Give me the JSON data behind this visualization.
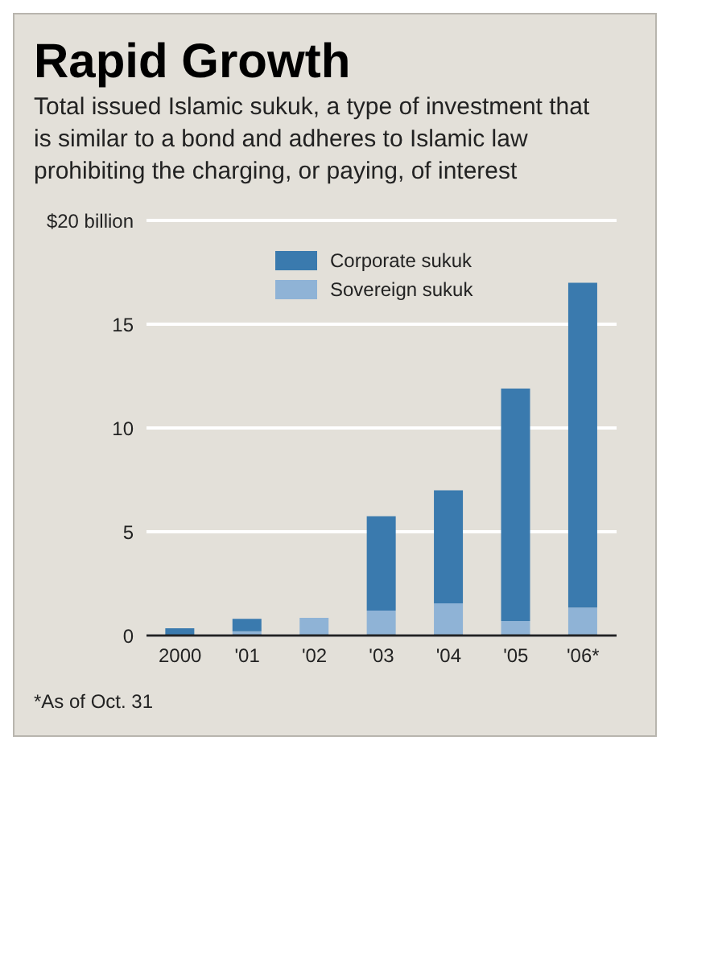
{
  "chart_data": {
    "type": "bar",
    "title": "Rapid Growth",
    "subtitle": "Total issued Islamic sukuk, a type of investment that is similar to a bond and adheres to Islamic law prohibiting the charging, or paying, of interest",
    "categories": [
      "2000",
      "'01",
      "'02",
      "'03",
      "'04",
      "'05",
      "'06*"
    ],
    "series": [
      {
        "name": "Sovereign sukuk",
        "color": "#8fb3d6",
        "values": [
          0,
          0.2,
          0.85,
          1.2,
          1.55,
          0.7,
          1.35
        ]
      },
      {
        "name": "Corporate sukuk",
        "color": "#3a7aae",
        "values": [
          0.35,
          0.6,
          0,
          4.55,
          5.45,
          11.2,
          15.65
        ]
      }
    ],
    "stacked": true,
    "ylim": [
      0,
      20
    ],
    "yticks": [
      0,
      5,
      10,
      15,
      {
        "value": 20,
        "label": "$20 billion"
      }
    ],
    "grid": "y",
    "legend": "top",
    "annotations": [
      "*As of Oct. 31"
    ]
  }
}
